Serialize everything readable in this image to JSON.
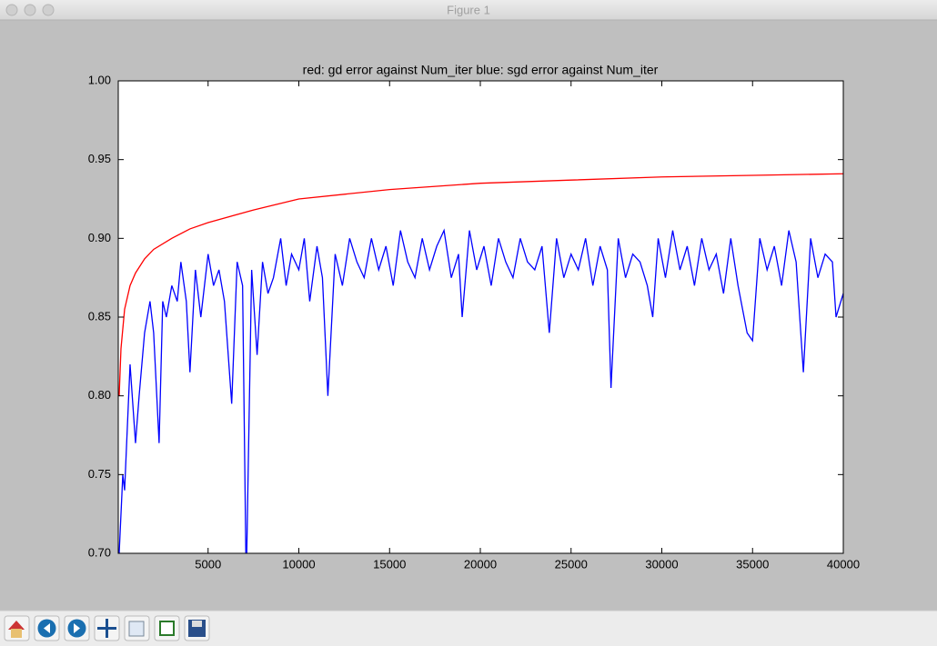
{
  "window_title": "Figure 1",
  "chart_data": {
    "type": "line",
    "title": "red: gd error against Num_iter  blue: sgd error against Num_iter",
    "xlim": [
      50,
      40000
    ],
    "xticks": [
      5000,
      10000,
      15000,
      20000,
      25000,
      30000,
      35000,
      40000
    ],
    "ylim": [
      0.7,
      1.0
    ],
    "yticks": [
      {
        "value": 0.7,
        "label": "0.70"
      },
      0.75,
      {
        "value": 0.8,
        "label": "0.80"
      },
      0.85,
      {
        "value": 0.9,
        "label": "0.90"
      },
      0.95,
      {
        "value": 1.0,
        "label": "1.00"
      }
    ],
    "series": [
      {
        "color": "#ff0000",
        "x": [
          100,
          200,
          400,
          700,
          1000,
          1500,
          2000,
          3000,
          4000,
          5000,
          7500,
          10000,
          15000,
          20000,
          25000,
          30000,
          35000,
          40000
        ],
        "values": [
          0.8,
          0.83,
          0.855,
          0.87,
          0.878,
          0.887,
          0.893,
          0.9,
          0.906,
          0.91,
          0.918,
          0.925,
          0.931,
          0.935,
          0.937,
          0.939,
          0.94,
          0.941
        ]
      },
      {
        "color": "#0000ff",
        "x": [
          100,
          300,
          400,
          700,
          1000,
          1200,
          1500,
          1800,
          2000,
          2300,
          2500,
          2700,
          3000,
          3300,
          3500,
          3800,
          4000,
          4300,
          4600,
          5000,
          5300,
          5600,
          5900,
          6300,
          6600,
          6900,
          7100,
          7400,
          7700,
          8000,
          8300,
          8600,
          9000,
          9300,
          9600,
          10000,
          10300,
          10600,
          11000,
          11300,
          11600,
          12000,
          12400,
          12800,
          13200,
          13600,
          14000,
          14400,
          14800,
          15200,
          15600,
          16000,
          16400,
          16800,
          17200,
          17600,
          18000,
          18400,
          18800,
          19000,
          19400,
          19800,
          20200,
          20600,
          21000,
          21400,
          21800,
          22200,
          22600,
          23000,
          23400,
          23800,
          24200,
          24600,
          25000,
          25400,
          25800,
          26200,
          26600,
          27000,
          27200,
          27600,
          28000,
          28400,
          28800,
          29200,
          29500,
          29800,
          30200,
          30600,
          31000,
          31400,
          31800,
          32200,
          32600,
          33000,
          33400,
          33800,
          34200,
          34700,
          35000,
          35400,
          35800,
          36200,
          36600,
          37000,
          37400,
          37800,
          38200,
          38600,
          39000,
          39400,
          39600,
          40000
        ],
        "values": [
          0.7,
          0.75,
          0.74,
          0.82,
          0.77,
          0.8,
          0.84,
          0.86,
          0.84,
          0.77,
          0.86,
          0.85,
          0.87,
          0.86,
          0.885,
          0.86,
          0.815,
          0.88,
          0.85,
          0.89,
          0.87,
          0.88,
          0.86,
          0.795,
          0.885,
          0.87,
          0.68,
          0.88,
          0.826,
          0.885,
          0.865,
          0.875,
          0.9,
          0.87,
          0.89,
          0.88,
          0.9,
          0.86,
          0.895,
          0.875,
          0.8,
          0.89,
          0.87,
          0.9,
          0.885,
          0.875,
          0.9,
          0.88,
          0.895,
          0.87,
          0.905,
          0.885,
          0.875,
          0.9,
          0.88,
          0.895,
          0.905,
          0.875,
          0.89,
          0.85,
          0.905,
          0.88,
          0.895,
          0.87,
          0.9,
          0.885,
          0.875,
          0.9,
          0.885,
          0.88,
          0.895,
          0.84,
          0.9,
          0.875,
          0.89,
          0.88,
          0.9,
          0.87,
          0.895,
          0.88,
          0.805,
          0.9,
          0.875,
          0.89,
          0.885,
          0.87,
          0.85,
          0.9,
          0.875,
          0.905,
          0.88,
          0.895,
          0.87,
          0.9,
          0.88,
          0.89,
          0.865,
          0.9,
          0.87,
          0.84,
          0.835,
          0.9,
          0.88,
          0.895,
          0.87,
          0.905,
          0.885,
          0.815,
          0.9,
          0.875,
          0.89,
          0.885,
          0.85,
          0.865
        ]
      }
    ]
  }
}
